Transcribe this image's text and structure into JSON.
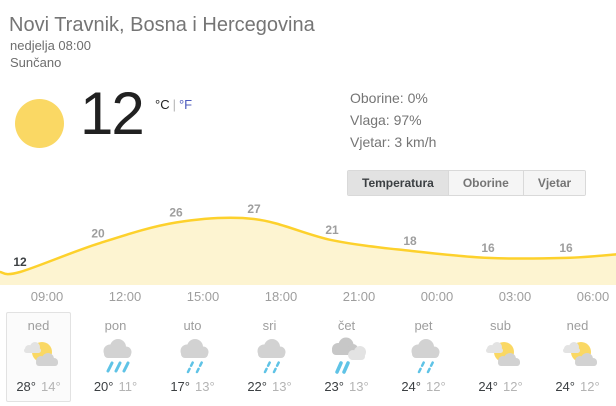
{
  "header": {
    "title": "Novi Travnik, Bosna i Hercegovina",
    "datetime": "nedjelja 08:00",
    "condition": "Sunčano"
  },
  "current": {
    "temperature": "12",
    "condition_icon": "sunny",
    "units": {
      "celsius": "°C",
      "separator": "|",
      "fahrenheit": "°F"
    },
    "details": {
      "precipitation": "Oborine: 0%",
      "humidity": "Vlaga: 97%",
      "wind": "Vjetar: 3 km/h"
    }
  },
  "tabs": [
    {
      "label": "Temperatura",
      "selected": true
    },
    {
      "label": "Oborine",
      "selected": false
    },
    {
      "label": "Vjetar",
      "selected": false
    }
  ],
  "chart_data": {
    "type": "area",
    "title": "",
    "xlabel": "",
    "ylabel": "",
    "x_labels": [
      "09:00",
      "12:00",
      "15:00",
      "18:00",
      "21:00",
      "00:00",
      "03:00",
      "06:00"
    ],
    "values": [
      12,
      20,
      26,
      27,
      21,
      18,
      16,
      16
    ],
    "ylim": [
      12,
      27
    ],
    "grid": false,
    "legend": false,
    "line_color": "#fdd12c",
    "fill_color": "#fdf4d1"
  },
  "forecast": [
    {
      "day": "ned",
      "icon": "partly-sunny",
      "high": "28°",
      "low": "14°",
      "selected": true
    },
    {
      "day": "pon",
      "icon": "rain-heavy",
      "high": "20°",
      "low": "11°",
      "selected": false
    },
    {
      "day": "uto",
      "icon": "showers",
      "high": "17°",
      "low": "13°",
      "selected": false
    },
    {
      "day": "sri",
      "icon": "showers",
      "high": "22°",
      "low": "13°",
      "selected": false
    },
    {
      "day": "čet",
      "icon": "rain-clouds",
      "high": "23°",
      "low": "13°",
      "selected": false
    },
    {
      "day": "pet",
      "icon": "showers",
      "high": "24°",
      "low": "12°",
      "selected": false
    },
    {
      "day": "sub",
      "icon": "partly-sunny",
      "high": "24°",
      "low": "12°",
      "selected": false
    },
    {
      "day": "ned",
      "icon": "partly-sunny",
      "high": "24°",
      "low": "12°",
      "selected": false
    }
  ],
  "colors": {
    "accent_yellow": "#fdd12c",
    "sun_yellow": "#fad864",
    "rain_blue": "#5fc3e6",
    "cloud_gray": "#d2d2d2",
    "cloud_light": "#e3e3e3",
    "text_dark": "#3c4043",
    "text_gray": "#757575",
    "link_blue": "#4d5bbe"
  }
}
